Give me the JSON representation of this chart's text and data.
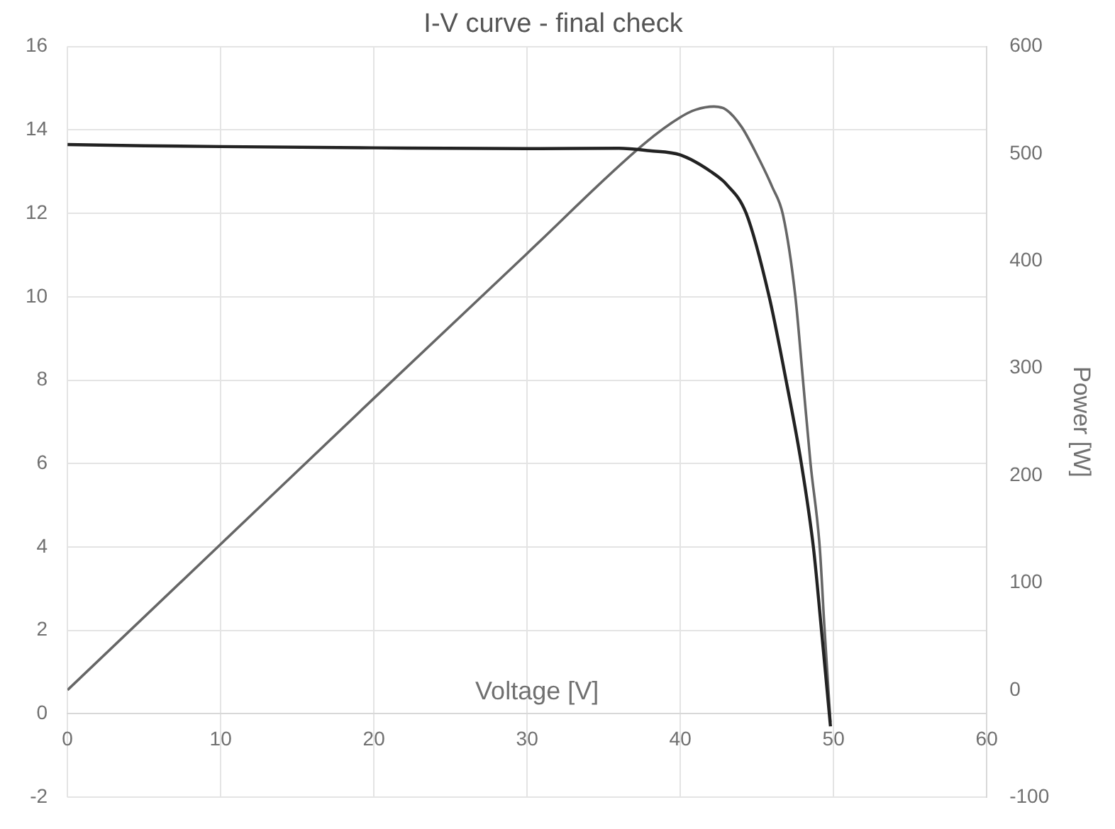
{
  "chart_data": {
    "type": "line",
    "title": "I-V curve - final check",
    "xlabel": "Voltage [V]",
    "y2label": "Power [W]",
    "xlim": [
      0,
      60
    ],
    "xticks": [
      0,
      10,
      20,
      30,
      40,
      50,
      60
    ],
    "ylim": [
      -2,
      16
    ],
    "yticks": [
      -2,
      0,
      2,
      4,
      6,
      8,
      10,
      12,
      14,
      16
    ],
    "y2lim": [
      -100,
      600
    ],
    "y2ticks": [
      -100,
      0,
      100,
      200,
      300,
      400,
      500,
      600
    ],
    "grid": true,
    "legend": false,
    "marker": "none",
    "line_style": "solid",
    "series": [
      {
        "color": "#222222",
        "x": [
          0,
          5,
          10,
          20,
          30,
          36,
          38,
          40,
          42,
          43,
          44.3,
          45.8,
          46.9,
          47.9,
          48.7,
          49.2,
          49.8
        ],
        "values": [
          13.65,
          13.62,
          13.6,
          13.57,
          13.55,
          13.56,
          13.5,
          13.4,
          13.0,
          12.7,
          12.0,
          10.0,
          8.0,
          6.0,
          3.95,
          2.06,
          -0.3
        ]
      },
      {
        "color": "#666666",
        "axis": "y2",
        "x": [
          0,
          10,
          20,
          30,
          37.7,
          40,
          41,
          42.2,
          43,
          44,
          45,
          46,
          46.7,
          47.5,
          48,
          48.5,
          49.1,
          49.4,
          49.8
        ],
        "values": [
          0,
          136,
          272,
          407,
          510,
          534,
          541,
          544,
          541,
          525,
          499,
          469,
          443,
          368,
          290,
          211,
          133,
          60,
          -30
        ]
      }
    ]
  }
}
